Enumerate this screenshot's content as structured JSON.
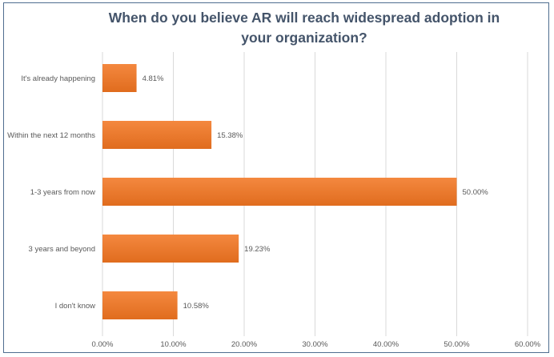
{
  "chart_data": {
    "type": "bar",
    "orientation": "horizontal",
    "title": "When do you believe AR will reach widespread adoption in your organization?",
    "categories": [
      "It's already happening",
      "Within the next 12 months",
      "1-3 years from now",
      "3 years and beyond",
      "I don't know"
    ],
    "values": [
      4.81,
      15.38,
      50.0,
      19.23,
      10.58
    ],
    "data_labels": [
      "4.81%",
      "15.38%",
      "50.00%",
      "19.23%",
      "10.58%"
    ],
    "xlim": [
      0,
      60
    ],
    "xticks": [
      "0.00%",
      "10.00%",
      "20.00%",
      "30.00%",
      "40.00%",
      "50.00%",
      "60.00%"
    ],
    "xlabel": "",
    "ylabel": "",
    "grid": true,
    "bar_color": "#ed7d31"
  }
}
